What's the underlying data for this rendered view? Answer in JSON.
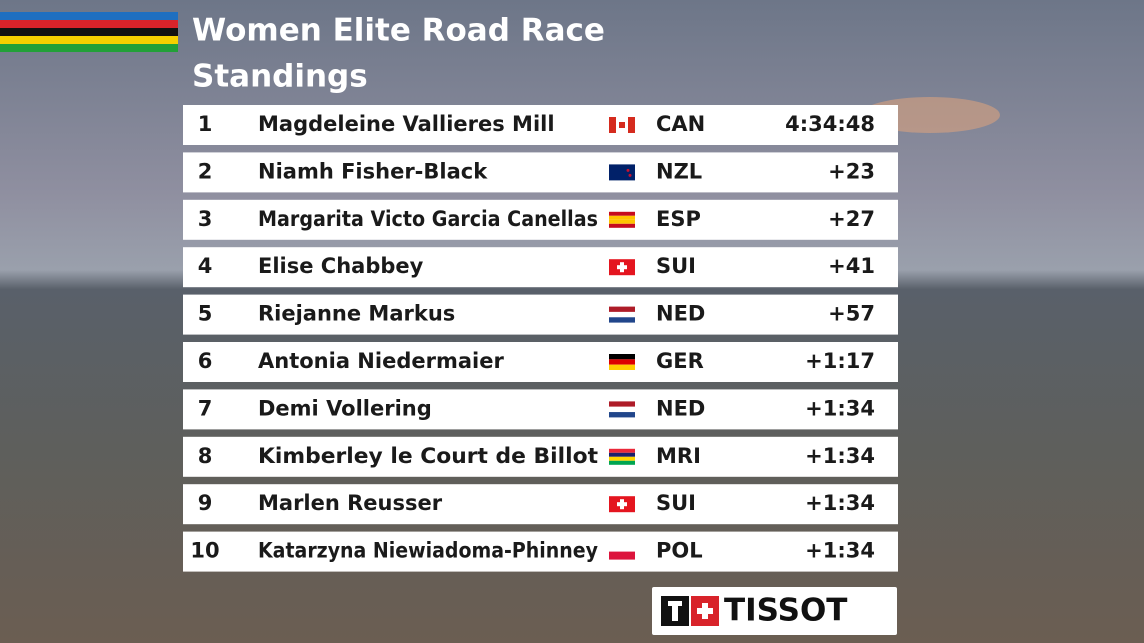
{
  "header": {
    "title_line1": "Women Elite Road Race",
    "title_line2": "Standings"
  },
  "standings": [
    {
      "rank": "1",
      "name": "Magdeleine Vallieres Mill",
      "country": "CAN",
      "time": "4:34:48"
    },
    {
      "rank": "2",
      "name": "Niamh Fisher-Black",
      "country": "NZL",
      "time": "+23"
    },
    {
      "rank": "3",
      "name": "Margarita Victo Garcia Canellas",
      "country": "ESP",
      "time": "+27"
    },
    {
      "rank": "4",
      "name": "Elise Chabbey",
      "country": "SUI",
      "time": "+41"
    },
    {
      "rank": "5",
      "name": "Riejanne Markus",
      "country": "NED",
      "time": "+57"
    },
    {
      "rank": "6",
      "name": "Antonia Niedermaier",
      "country": "GER",
      "time": "+1:17"
    },
    {
      "rank": "7",
      "name": "Demi Vollering",
      "country": "NED",
      "time": "+1:34"
    },
    {
      "rank": "8",
      "name": "Kimberley le Court de Billot",
      "country": "MRI",
      "time": "+1:34"
    },
    {
      "rank": "9",
      "name": "Marlen Reusser",
      "country": "SUI",
      "time": "+1:34"
    },
    {
      "rank": "10",
      "name": "Katarzyna Niewiadoma-Phinney",
      "country": "POL",
      "time": "+1:34"
    }
  ],
  "sponsor": "TISSOT"
}
